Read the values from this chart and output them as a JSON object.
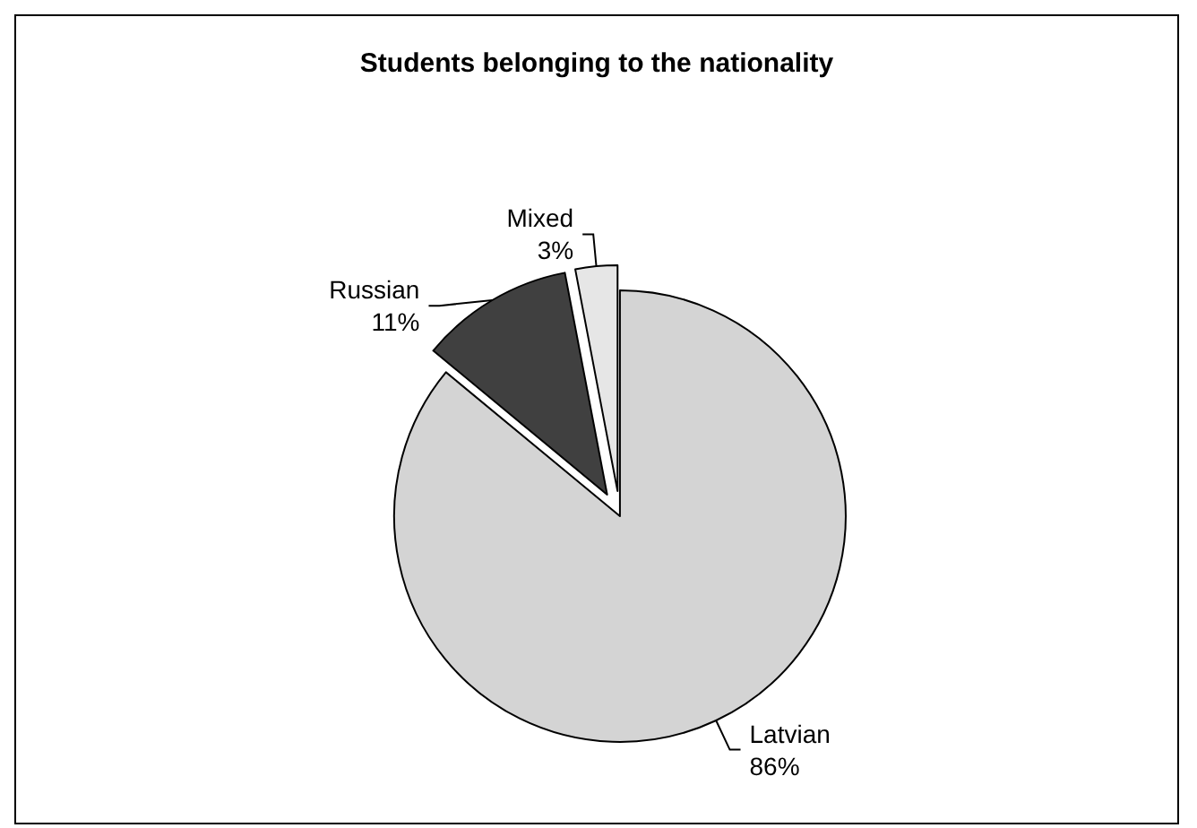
{
  "chart_data": {
    "type": "pie",
    "title": "Students belonging to the nationality",
    "categories": [
      "Latvian",
      "Russian",
      "Mixed"
    ],
    "values": [
      86,
      11,
      3
    ],
    "colors": [
      "#d4d4d4",
      "#404040",
      "#e6e6e6"
    ],
    "value_labels": [
      "86%",
      "11%",
      "3%"
    ],
    "legend": false
  }
}
